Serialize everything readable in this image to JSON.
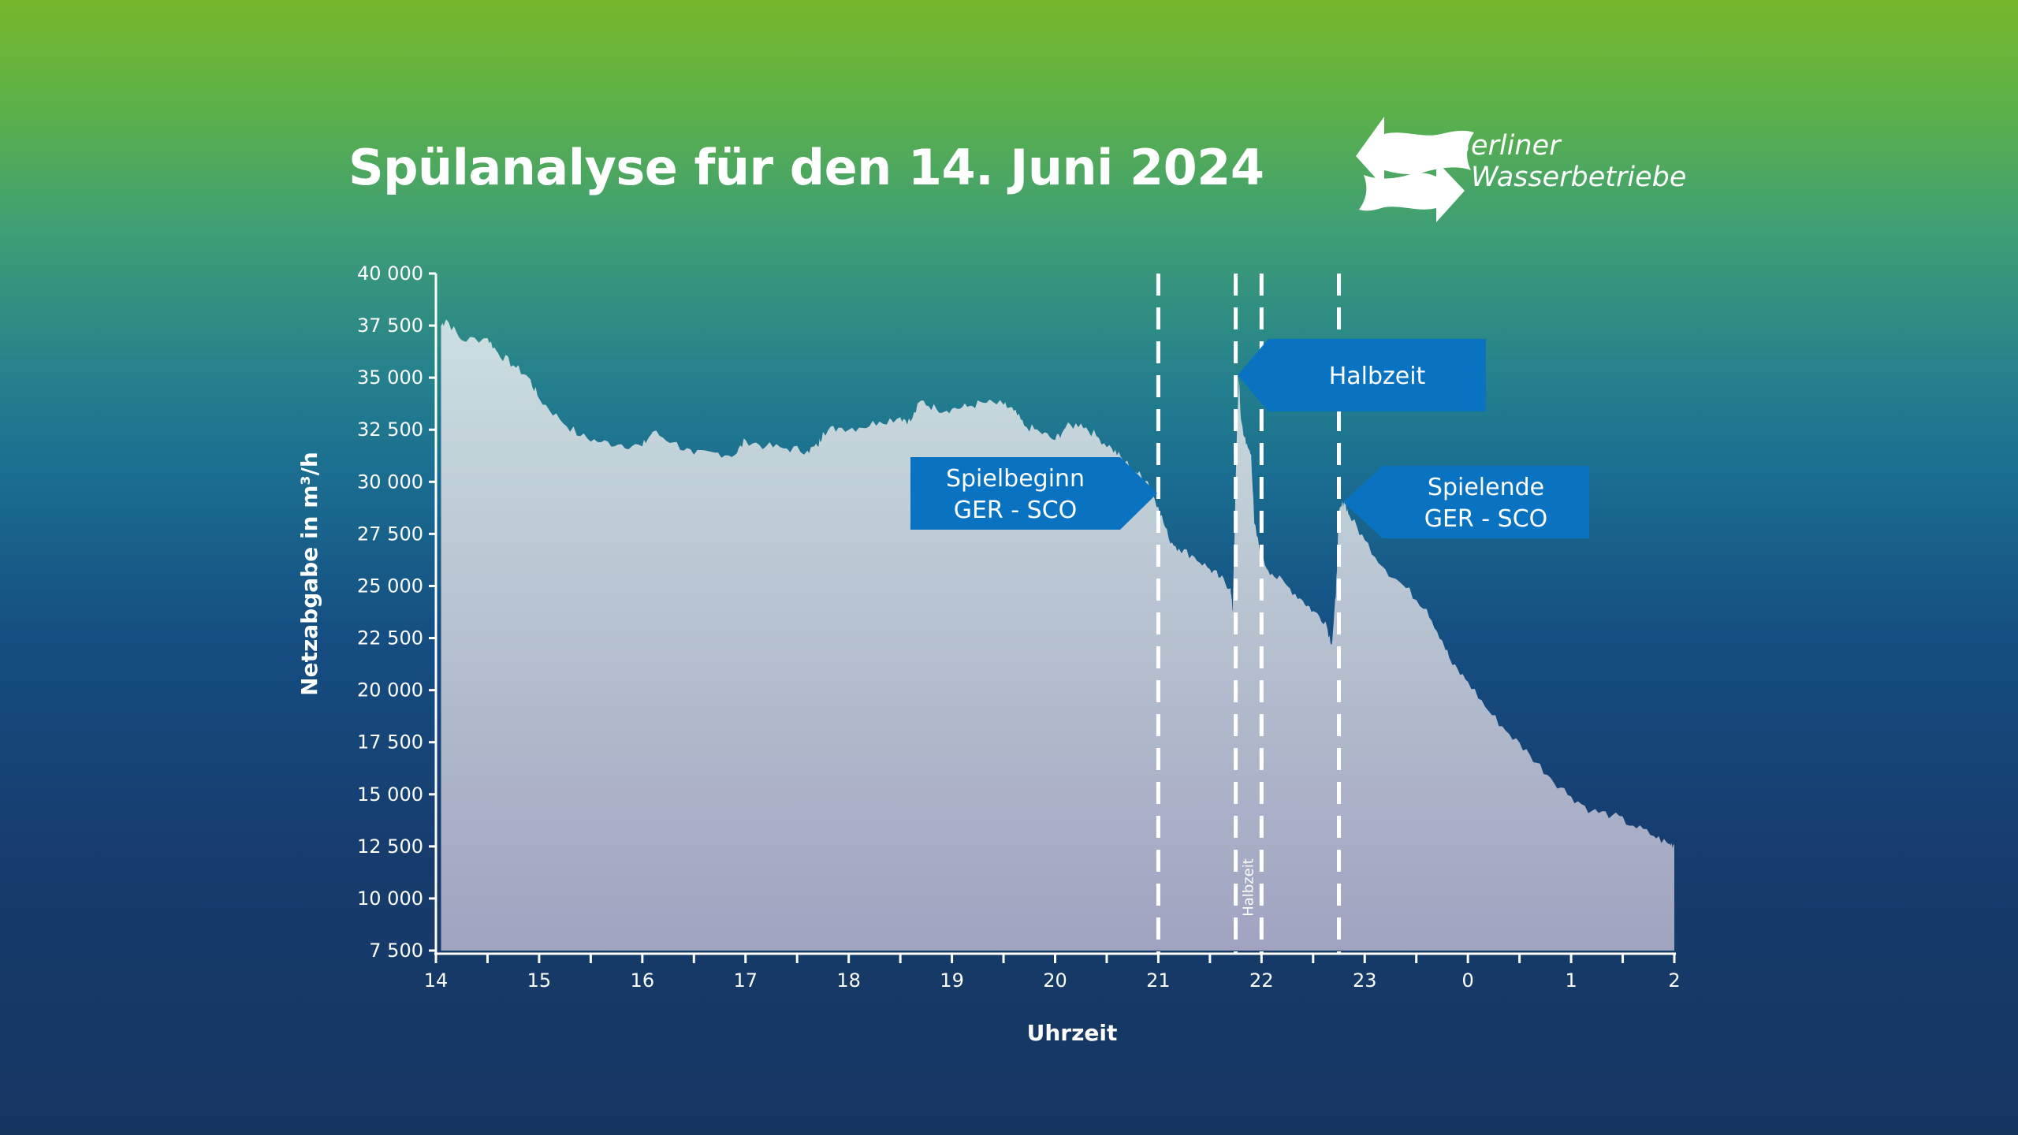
{
  "brand": {
    "name_line1": "Berliner",
    "name_line2": "Wasserbetriebe",
    "logo_icon": "berliner-wasserbetriebe-arrows-icon"
  },
  "chart_data": {
    "type": "area",
    "title": "Spülanalyse für den 14. Juni 2024",
    "xlabel": "Uhrzeit",
    "ylabel": "Netzabgabe in m³/h",
    "x_unit": "hours since 14:00",
    "x_tick_values": [
      0,
      1,
      2,
      3,
      4,
      5,
      6,
      7,
      8,
      9,
      10,
      11,
      12
    ],
    "x_tick_labels": [
      "14",
      "15",
      "16",
      "17",
      "18",
      "19",
      "20",
      "21",
      "22",
      "23",
      "0",
      "1",
      "2"
    ],
    "xlim": [
      0,
      12
    ],
    "ylim": [
      7500,
      40000
    ],
    "y_tick_values": [
      7500,
      10000,
      12500,
      15000,
      17500,
      20000,
      22500,
      25000,
      27500,
      30000,
      32500,
      35000,
      37500,
      40000
    ],
    "y_tick_labels": [
      "7 500",
      "10 000",
      "12 500",
      "15 000",
      "17 500",
      "20 000",
      "22 500",
      "25 000",
      "27 500",
      "30 000",
      "32 500",
      "35 000",
      "37 500",
      "40 000"
    ],
    "grid": false,
    "fill_colors": [
      "#ccdfe0",
      "#a0a3c0"
    ],
    "series": [
      {
        "points": [
          [
            0.05,
            37500
          ],
          [
            0.1,
            37800
          ],
          [
            0.25,
            36800
          ],
          [
            0.5,
            36900
          ],
          [
            0.6,
            36200
          ],
          [
            0.75,
            35600
          ],
          [
            0.9,
            35000
          ],
          [
            1.0,
            34000
          ],
          [
            1.2,
            33000
          ],
          [
            1.4,
            32200
          ],
          [
            1.6,
            31900
          ],
          [
            1.8,
            31800
          ],
          [
            2.0,
            31700
          ],
          [
            2.1,
            32400
          ],
          [
            2.3,
            31900
          ],
          [
            2.5,
            31300
          ],
          [
            2.7,
            31400
          ],
          [
            2.9,
            31300
          ],
          [
            3.0,
            32000
          ],
          [
            3.2,
            31700
          ],
          [
            3.4,
            31600
          ],
          [
            3.6,
            31500
          ],
          [
            3.7,
            31700
          ],
          [
            3.75,
            32400
          ],
          [
            3.9,
            32600
          ],
          [
            4.1,
            32600
          ],
          [
            4.3,
            32900
          ],
          [
            4.5,
            33100
          ],
          [
            4.6,
            32900
          ],
          [
            4.7,
            33900
          ],
          [
            4.85,
            33500
          ],
          [
            5.0,
            33500
          ],
          [
            5.15,
            33600
          ],
          [
            5.3,
            33800
          ],
          [
            5.5,
            33700
          ],
          [
            5.6,
            33400
          ],
          [
            5.7,
            32700
          ],
          [
            5.85,
            32400
          ],
          [
            6.0,
            32000
          ],
          [
            6.1,
            32600
          ],
          [
            6.25,
            32800
          ],
          [
            6.4,
            32200
          ],
          [
            6.55,
            31600
          ],
          [
            6.65,
            31100
          ],
          [
            6.8,
            30400
          ],
          [
            6.9,
            30000
          ],
          [
            7.0,
            28800
          ],
          [
            7.1,
            27300
          ],
          [
            7.2,
            26800
          ],
          [
            7.35,
            26400
          ],
          [
            7.5,
            25800
          ],
          [
            7.6,
            25400
          ],
          [
            7.7,
            24900
          ],
          [
            7.72,
            23800
          ],
          [
            7.76,
            32000
          ],
          [
            7.78,
            35000
          ],
          [
            7.8,
            33000
          ],
          [
            7.85,
            31800
          ],
          [
            7.9,
            31300
          ],
          [
            7.93,
            28000
          ],
          [
            8.0,
            26300
          ],
          [
            8.1,
            25600
          ],
          [
            8.25,
            25000
          ],
          [
            8.4,
            24300
          ],
          [
            8.5,
            23800
          ],
          [
            8.62,
            23300
          ],
          [
            8.68,
            22200
          ],
          [
            8.72,
            24500
          ],
          [
            8.75,
            28500
          ],
          [
            8.8,
            29100
          ],
          [
            8.85,
            28400
          ],
          [
            9.0,
            27200
          ],
          [
            9.2,
            25800
          ],
          [
            9.4,
            24900
          ],
          [
            9.6,
            23900
          ],
          [
            9.75,
            22400
          ],
          [
            9.85,
            21200
          ],
          [
            10.0,
            20400
          ],
          [
            10.2,
            19000
          ],
          [
            10.4,
            17900
          ],
          [
            10.6,
            16900
          ],
          [
            10.8,
            15800
          ],
          [
            11.0,
            14900
          ],
          [
            11.2,
            14200
          ],
          [
            11.4,
            14000
          ],
          [
            11.6,
            13500
          ],
          [
            11.8,
            13000
          ],
          [
            11.95,
            12600
          ],
          [
            12.0,
            12600
          ]
        ]
      }
    ],
    "events": [
      {
        "x": 7.0,
        "label": ""
      },
      {
        "x": 7.75,
        "label": "Halbzeit"
      },
      {
        "x": 8.0,
        "label": ""
      },
      {
        "x": 8.75,
        "label": ""
      }
    ],
    "callouts": [
      {
        "lines": [
          "Spielbeginn",
          "GER - SCO"
        ],
        "target_x": 7.0
      },
      {
        "lines": [
          "Halbzeit"
        ],
        "target_x": 7.78
      },
      {
        "lines": [
          "Spielende",
          "GER - SCO"
        ],
        "target_x": 8.8
      }
    ]
  }
}
